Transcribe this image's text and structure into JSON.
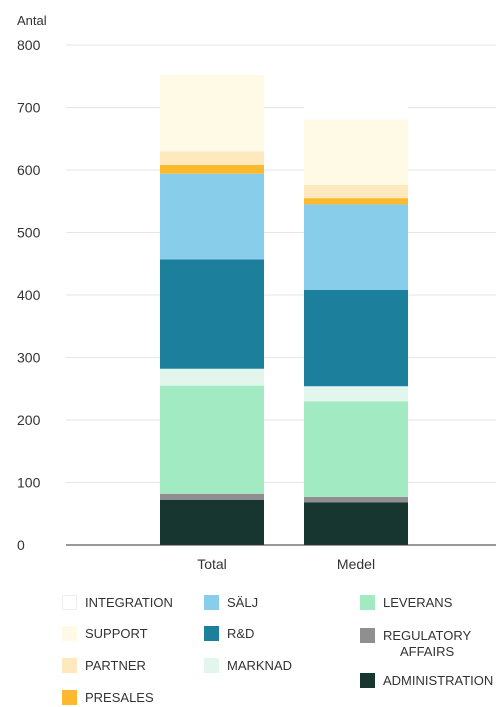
{
  "chart_data": {
    "type": "bar",
    "stacked": true,
    "ylabel": "Antal",
    "ylim": [
      0,
      800
    ],
    "yticks": [
      0,
      100,
      200,
      300,
      400,
      500,
      600,
      700,
      800
    ],
    "categories": [
      "Total",
      "Medel"
    ],
    "grid": true,
    "series": [
      {
        "name": "ADMINISTRATION",
        "color": "#17362f",
        "values": [
          72,
          68
        ]
      },
      {
        "name": "REGULATORY\nAFFAIRS",
        "color": "#8f8f8f",
        "values": [
          10,
          9
        ]
      },
      {
        "name": "LEVERANS",
        "color": "#a2eac1",
        "values": [
          173,
          153
        ]
      },
      {
        "name": "MARKNAD",
        "color": "#e2f6ee",
        "values": [
          27,
          24
        ]
      },
      {
        "name": "R&D",
        "color": "#1c7f9b",
        "values": [
          175,
          154
        ]
      },
      {
        "name": "SÄLJ",
        "color": "#88cdea",
        "values": [
          137,
          137
        ]
      },
      {
        "name": "PRESALES",
        "color": "#fcb92e",
        "values": [
          14,
          10
        ]
      },
      {
        "name": "PARTNER",
        "color": "#fde9bd",
        "values": [
          22,
          21
        ]
      },
      {
        "name": "SUPPORT",
        "color": "#fefae6",
        "values": [
          122,
          105
        ]
      },
      {
        "name": "INTEGRATION",
        "color": "#ffffff",
        "values": [
          21,
          21
        ]
      }
    ]
  }
}
